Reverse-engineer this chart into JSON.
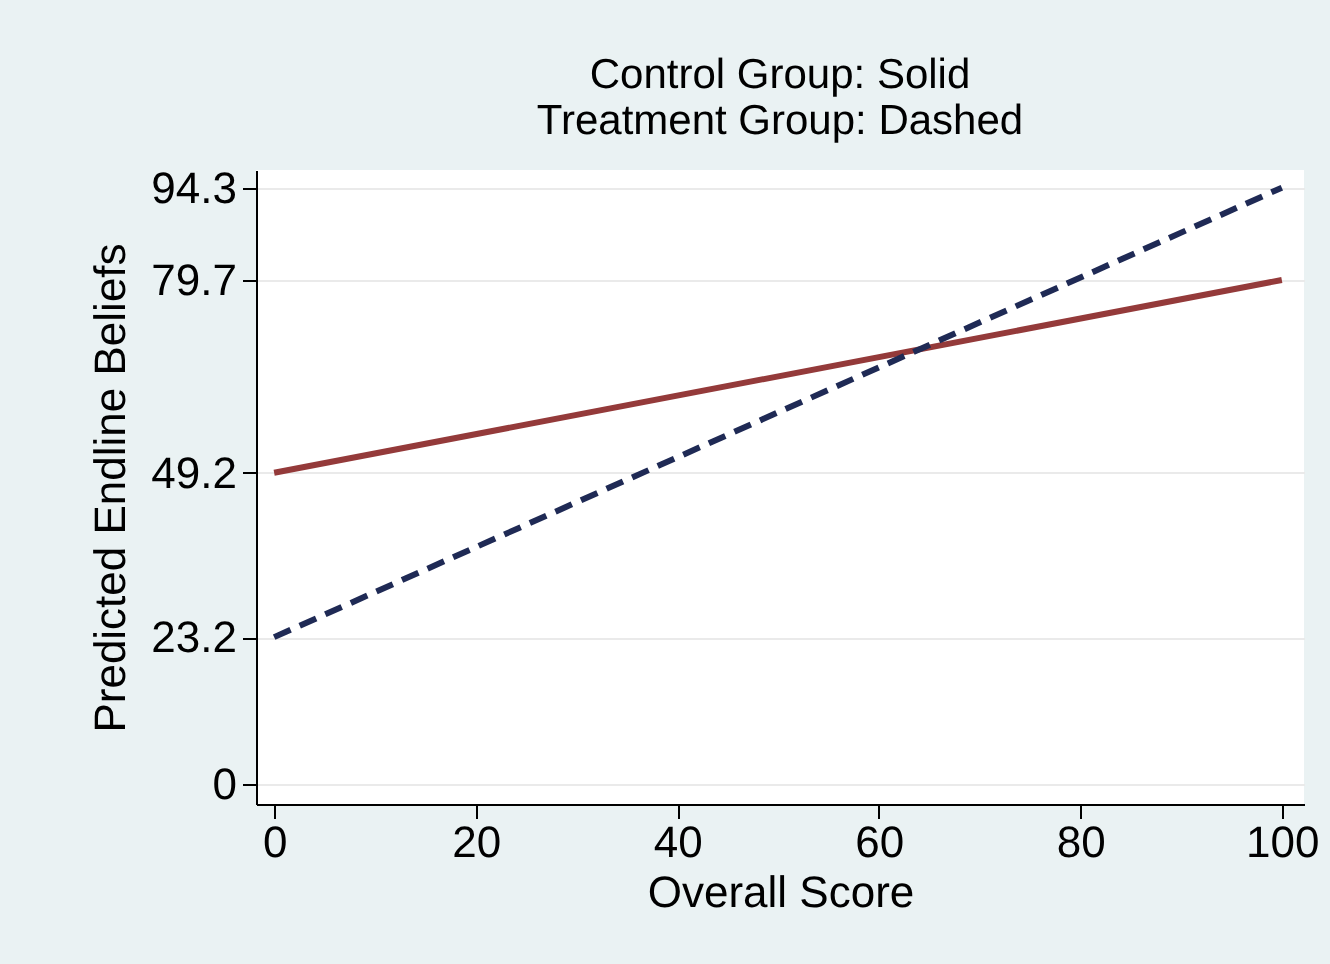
{
  "chart_data": {
    "type": "line",
    "title": "Control Group: Solid",
    "subtitle": "Treatment Group: Dashed",
    "xlabel": "Overall Score",
    "ylabel": "Predicted Endline Beliefs",
    "x": [
      0,
      100
    ],
    "series": [
      {
        "color": "#943a3a",
        "line_style": "solid",
        "values": [
          49.2,
          79.7
        ]
      },
      {
        "color": "#1f2a55",
        "line_style": "dashed",
        "values": [
          23.2,
          94.3
        ]
      }
    ],
    "xlim": [
      -1.8,
      102.2
    ],
    "xticks": [
      0,
      20,
      40,
      60,
      80,
      100
    ],
    "ylim": [
      -3.2,
      97.1
    ],
    "yticks": [
      0,
      23.2,
      49.2,
      79.7,
      94.3
    ],
    "grid": "y",
    "marker": "none"
  }
}
